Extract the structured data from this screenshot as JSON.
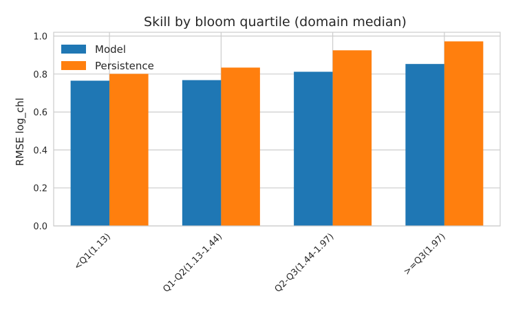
{
  "chart_data": {
    "type": "bar",
    "title": "Skill by bloom quartile (domain median)",
    "xlabel": "",
    "ylabel": "RMSE log_chl",
    "categories": [
      "<Q1(1.13)",
      "Q1-Q2(1.13-1.44)",
      "Q2-Q3(1.44-1.97)",
      ">=Q3(1.97)"
    ],
    "series": [
      {
        "name": "Model",
        "values": [
          0.765,
          0.768,
          0.812,
          0.853
        ],
        "color": "#1f77b4"
      },
      {
        "name": "Persistence",
        "values": [
          0.801,
          0.834,
          0.925,
          0.972
        ],
        "color": "#ff7f0e"
      }
    ],
    "ylim": [
      0,
      1.02
    ],
    "yticks": [
      "0.0",
      "0.2",
      "0.4",
      "0.6",
      "0.8",
      "1.0"
    ],
    "grid": true,
    "legend_position": "top-left"
  }
}
